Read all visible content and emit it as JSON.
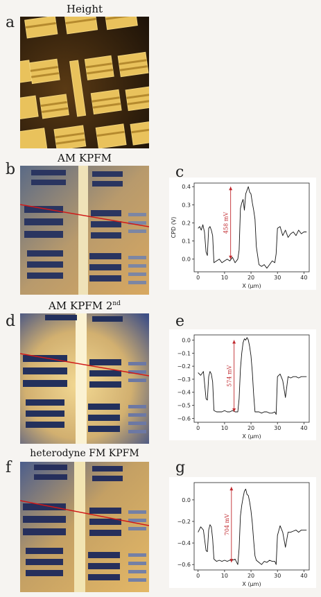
{
  "panels": {
    "a": {
      "letter": "a",
      "title": "Height"
    },
    "b": {
      "letter": "b",
      "title": "AM KPFM"
    },
    "c": {
      "letter": "c"
    },
    "d": {
      "letter": "d",
      "title": "AM KPFM 2",
      "title_sup": "nd"
    },
    "e": {
      "letter": "e"
    },
    "f": {
      "letter": "f",
      "title": "heterodyne FM KPFM"
    },
    "g": {
      "letter": "g"
    }
  },
  "colors": {
    "line": "#111111",
    "annotation": "#c0282e",
    "scanline": "#d01818"
  },
  "chart_data": [
    {
      "type": "line",
      "panel": "c",
      "xlabel": "X (µm)",
      "ylabel": "CPD (V)",
      "xlim": [
        -1.5,
        42
      ],
      "ylim": [
        -0.07,
        0.42
      ],
      "xticks": [
        0,
        10,
        20,
        30,
        40
      ],
      "yticks": [
        0.0,
        0.1,
        0.2,
        0.3,
        0.4
      ],
      "ytick_labels": [
        "0.0",
        "0.1",
        "0.2",
        "0.3",
        "0.4"
      ],
      "annotation": {
        "text": "458 mV",
        "x": 12.3,
        "y_from": 0.0,
        "y_to": 0.4
      },
      "x": [
        0,
        0.6,
        1.2,
        1.8,
        2.4,
        3,
        3.5,
        4,
        4.5,
        5,
        5.5,
        6,
        7,
        8,
        9,
        10,
        11,
        12,
        13,
        14,
        15,
        15.5,
        16,
        16.5,
        17,
        17.5,
        18,
        18.5,
        19,
        19.5,
        20,
        20.5,
        21,
        21.5,
        22,
        23,
        24,
        25,
        26,
        27,
        28,
        29,
        29.5,
        30,
        31,
        32,
        33,
        34,
        35,
        36,
        37,
        38,
        39,
        40,
        41
      ],
      "y": [
        0.17,
        0.18,
        0.16,
        0.19,
        0.15,
        0.04,
        0.02,
        0.17,
        0.18,
        0.16,
        0.13,
        -0.02,
        -0.01,
        0.0,
        -0.02,
        -0.01,
        0.0,
        -0.01,
        0.01,
        -0.02,
        0.0,
        0.05,
        0.28,
        0.31,
        0.33,
        0.27,
        0.36,
        0.38,
        0.4,
        0.37,
        0.36,
        0.31,
        0.27,
        0.22,
        0.07,
        -0.03,
        -0.04,
        -0.03,
        -0.05,
        -0.03,
        -0.01,
        -0.02,
        0.03,
        0.17,
        0.18,
        0.13,
        0.16,
        0.12,
        0.14,
        0.15,
        0.13,
        0.16,
        0.14,
        0.15,
        0.15
      ]
    },
    {
      "type": "line",
      "panel": "e",
      "xlabel": "X (µm)",
      "ylabel": "",
      "xlim": [
        -1.5,
        42
      ],
      "ylim": [
        -0.63,
        0.04
      ],
      "xticks": [
        0,
        10,
        20,
        30,
        40
      ],
      "yticks": [
        0.0,
        -0.1,
        -0.2,
        -0.3,
        -0.4,
        -0.5,
        -0.6
      ],
      "ytick_labels": [
        "0.0",
        "−0.1",
        "−0.2",
        "−0.3",
        "−0.4",
        "−0.5",
        "−0.6"
      ],
      "annotation": {
        "text": "574 mV",
        "x": 13.6,
        "y_from": -0.55,
        "y_to": 0.0
      },
      "x": [
        0,
        1,
        2,
        3,
        3.5,
        4,
        4.5,
        5,
        5.5,
        6,
        7,
        8,
        9,
        10,
        11,
        12,
        13,
        14,
        15,
        15.5,
        16,
        16.5,
        17,
        17.5,
        18,
        18.5,
        19,
        19.5,
        20,
        20.5,
        21,
        21.5,
        22,
        23,
        24,
        25,
        26,
        27,
        28,
        29,
        29.5,
        30,
        31,
        32,
        33,
        34,
        35,
        36,
        37,
        38,
        39,
        40,
        41
      ],
      "y": [
        -0.25,
        -0.27,
        -0.24,
        -0.45,
        -0.46,
        -0.28,
        -0.24,
        -0.26,
        -0.32,
        -0.54,
        -0.55,
        -0.55,
        -0.55,
        -0.54,
        -0.55,
        -0.55,
        -0.54,
        -0.55,
        -0.55,
        -0.45,
        -0.22,
        -0.1,
        -0.02,
        0.01,
        0.0,
        0.02,
        0.0,
        -0.05,
        -0.12,
        -0.25,
        -0.42,
        -0.55,
        -0.55,
        -0.55,
        -0.56,
        -0.55,
        -0.55,
        -0.56,
        -0.56,
        -0.55,
        -0.57,
        -0.28,
        -0.26,
        -0.31,
        -0.44,
        -0.28,
        -0.29,
        -0.28,
        -0.28,
        -0.29,
        -0.28,
        -0.28,
        -0.28
      ]
    },
    {
      "type": "line",
      "panel": "g",
      "xlabel": "X (µm)",
      "ylabel": "",
      "xlim": [
        -1.5,
        42
      ],
      "ylim": [
        -0.65,
        0.16
      ],
      "xticks": [
        0,
        10,
        20,
        30,
        40
      ],
      "yticks": [
        0.0,
        -0.2,
        -0.4,
        -0.6
      ],
      "ytick_labels": [
        "0.0",
        "−0.2",
        "−0.4",
        "−0.6"
      ],
      "annotation": {
        "text": "704 mV",
        "x": 12.6,
        "y_from": -0.58,
        "y_to": 0.12
      },
      "x": [
        0,
        1,
        2,
        3,
        3.5,
        4,
        4.5,
        5,
        5.5,
        6,
        7,
        8,
        9,
        10,
        11,
        12,
        13,
        14,
        15,
        15.5,
        16,
        16.5,
        17,
        17.5,
        18,
        18.5,
        19,
        19.5,
        20,
        20.5,
        21,
        21.5,
        22,
        23,
        24,
        25,
        26,
        27,
        28,
        29,
        29.5,
        30,
        31,
        32,
        33,
        34,
        35,
        36,
        37,
        38,
        39,
        40,
        41
      ],
      "y": [
        -0.3,
        -0.25,
        -0.28,
        -0.47,
        -0.48,
        -0.28,
        -0.23,
        -0.25,
        -0.36,
        -0.55,
        -0.57,
        -0.56,
        -0.57,
        -0.56,
        -0.57,
        -0.56,
        -0.56,
        -0.55,
        -0.6,
        -0.45,
        -0.15,
        -0.05,
        0.02,
        0.08,
        0.1,
        0.05,
        0.04,
        -0.02,
        -0.1,
        -0.22,
        -0.38,
        -0.52,
        -0.56,
        -0.58,
        -0.6,
        -0.57,
        -0.58,
        -0.56,
        -0.57,
        -0.57,
        -0.6,
        -0.33,
        -0.24,
        -0.3,
        -0.44,
        -0.3,
        -0.3,
        -0.29,
        -0.28,
        -0.3,
        -0.28,
        -0.28,
        -0.28
      ]
    }
  ]
}
